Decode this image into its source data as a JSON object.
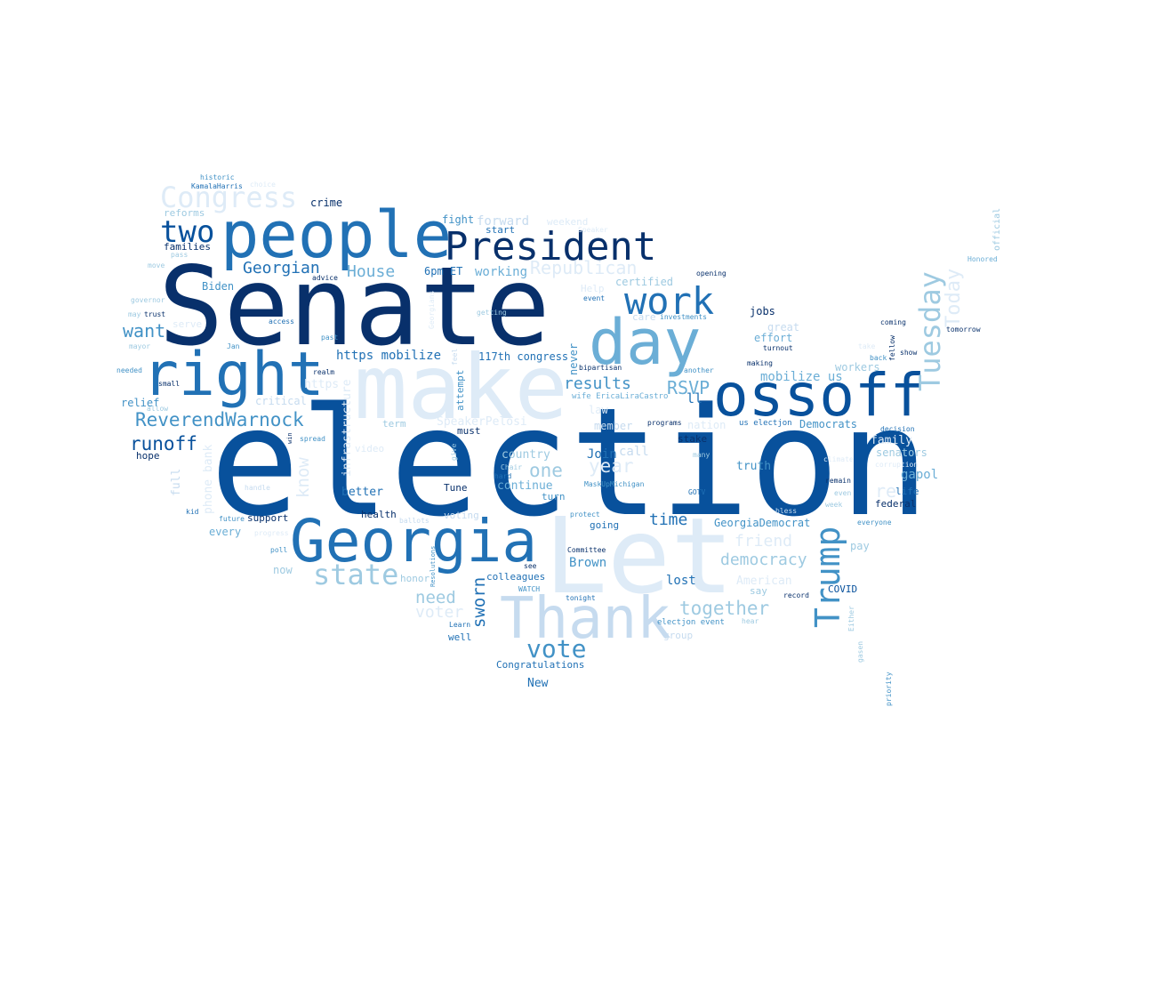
{
  "palette": [
    "#08306b",
    "#08519c",
    "#2171b5",
    "#4292c6",
    "#6baed6",
    "#9ecae1",
    "#c6dbef",
    "#deebf7"
  ],
  "words": [
    {
      "text": "election",
      "color": "#08519c"
    },
    {
      "text": "Senate",
      "color": "#08306b"
    },
    {
      "text": "make",
      "color": "#deebf7"
    },
    {
      "text": "Let",
      "color": "#deebf7"
    },
    {
      "text": "people",
      "color": "#2171b5"
    },
    {
      "text": "Georgia",
      "color": "#2171b5"
    },
    {
      "text": "ossoff",
      "color": "#08519c"
    },
    {
      "text": "right",
      "color": "#2171b5"
    },
    {
      "text": "day",
      "color": "#6baed6"
    },
    {
      "text": "Thank",
      "color": "#c6dbef"
    },
    {
      "text": "President",
      "color": "#08306b"
    },
    {
      "text": "work",
      "color": "#2171b5"
    },
    {
      "text": "Congress",
      "color": "#deebf7"
    },
    {
      "text": "two",
      "color": "#08519c"
    },
    {
      "text": "Tuesday",
      "color": "#9ecae1"
    },
    {
      "text": "Trump",
      "color": "#4292c6"
    },
    {
      "text": "vote",
      "color": "#4292c6"
    },
    {
      "text": "state",
      "color": "#9ecae1"
    },
    {
      "text": "Today",
      "color": "#deebf7"
    },
    {
      "text": "ReverendWarnock",
      "color": "#4292c6"
    },
    {
      "text": "runoff",
      "color": "#08519c"
    },
    {
      "text": "Georgian",
      "color": "#2171b5"
    },
    {
      "text": "want",
      "color": "#4292c6"
    },
    {
      "text": "House",
      "color": "#6baed6"
    },
    {
      "text": "Republican",
      "color": "#deebf7"
    },
    {
      "text": "RSVP",
      "color": "#6baed6"
    },
    {
      "text": "results",
      "color": "#4292c6"
    },
    {
      "text": "together",
      "color": "#9ecae1"
    },
    {
      "text": "one",
      "color": "#9ecae1"
    },
    {
      "text": "year",
      "color": "#deebf7"
    },
    {
      "text": "time",
      "color": "#2171b5"
    },
    {
      "text": "democracy",
      "color": "#9ecae1"
    },
    {
      "text": "need",
      "color": "#9ecae1"
    },
    {
      "text": "voter",
      "color": "#deebf7"
    },
    {
      "text": "sworn",
      "color": "#2171b5"
    },
    {
      "text": "know",
      "color": "#deebf7"
    },
    {
      "text": "friend",
      "color": "#deebf7"
    },
    {
      "text": "re",
      "color": "#deebf7"
    },
    {
      "text": "https mobilize",
      "color": "#2171b5"
    },
    {
      "text": "forward",
      "color": "#c6dbef"
    },
    {
      "text": "mobilize us",
      "color": "#6baed6"
    },
    {
      "text": "117th congress",
      "color": "#2171b5"
    },
    {
      "text": "working",
      "color": "#6baed6"
    },
    {
      "text": "certified",
      "color": "#9ecae1"
    },
    {
      "text": "ll",
      "color": "#2171b5"
    },
    {
      "text": "Join",
      "color": "#2171b5"
    },
    {
      "text": "call",
      "color": "#c6dbef"
    },
    {
      "text": "country",
      "color": "#9ecae1"
    },
    {
      "text": "continue",
      "color": "#6baed6"
    },
    {
      "text": "Brown",
      "color": "#4292c6"
    },
    {
      "text": "lost",
      "color": "#2171b5"
    },
    {
      "text": "American",
      "color": "#deebf7"
    },
    {
      "text": "GeorgiaDemocrat",
      "color": "#4292c6"
    },
    {
      "text": "truth",
      "color": "#4292c6"
    },
    {
      "text": "gapol",
      "color": "#6baed6"
    },
    {
      "text": "senators",
      "color": "#9ecae1"
    },
    {
      "text": "family",
      "color": "#deebf7"
    },
    {
      "text": "Democrats",
      "color": "#4292c6"
    },
    {
      "text": "workers",
      "color": "#9ecae1"
    },
    {
      "text": "effort",
      "color": "#6baed6"
    },
    {
      "text": "great",
      "color": "#c6dbef"
    },
    {
      "text": "jobs",
      "color": "#08306b"
    },
    {
      "text": "crime",
      "color": "#08306b"
    },
    {
      "text": "fight",
      "color": "#4292c6"
    },
    {
      "text": "start",
      "color": "#2171b5"
    },
    {
      "text": "weekend",
      "color": "#deebf7"
    },
    {
      "text": "6pm ET",
      "color": "#2171b5"
    },
    {
      "text": "Biden",
      "color": "#4292c6"
    },
    {
      "text": "families",
      "color": "#08306b"
    },
    {
      "text": "reforms",
      "color": "#9ecae1"
    },
    {
      "text": "KamalaHarris",
      "color": "#2171b5"
    },
    {
      "text": "historic",
      "color": "#4292c6"
    },
    {
      "text": "relief",
      "color": "#4292c6"
    },
    {
      "text": "hope",
      "color": "#08306b"
    },
    {
      "text": "full",
      "color": "#c6dbef"
    },
    {
      "text": "phone bank",
      "color": "#deebf7"
    },
    {
      "text": "better",
      "color": "#2171b5"
    },
    {
      "text": "health",
      "color": "#08306b"
    },
    {
      "text": "support",
      "color": "#08306b"
    },
    {
      "text": "every",
      "color": "#6baed6"
    },
    {
      "text": "now",
      "color": "#9ecae1"
    },
    {
      "text": "honor",
      "color": "#9ecae1"
    },
    {
      "text": "colleagues",
      "color": "#2171b5"
    },
    {
      "text": "well",
      "color": "#2171b5"
    },
    {
      "text": "Congratulations",
      "color": "#2171b5"
    },
    {
      "text": "New",
      "color": "#2171b5"
    },
    {
      "text": "must",
      "color": "#08306b"
    },
    {
      "text": "SpeakerPelosi",
      "color": "#deebf7"
    },
    {
      "text": "term",
      "color": "#9ecae1"
    },
    {
      "text": "critical",
      "color": "#c6dbef"
    },
    {
      "text": "infrastructure",
      "color": "#deebf7"
    },
    {
      "text": "attempt",
      "color": "#4292c6"
    },
    {
      "text": "Tune",
      "color": "#08306b"
    },
    {
      "text": "turn",
      "color": "#4292c6"
    },
    {
      "text": "voting",
      "color": "#c6dbef"
    },
    {
      "text": "going",
      "color": "#2171b5"
    },
    {
      "text": "member",
      "color": "#c6dbef"
    },
    {
      "text": "stake",
      "color": "#08306b"
    },
    {
      "text": "nation",
      "color": "#deebf7"
    },
    {
      "text": "law",
      "color": "#deebf7"
    },
    {
      "text": "federal",
      "color": "#08306b"
    },
    {
      "text": "life",
      "color": "#2171b5"
    },
    {
      "text": "pay",
      "color": "#9ecae1"
    },
    {
      "text": "COVID",
      "color": "#08519c"
    },
    {
      "text": "group",
      "color": "#c6dbef"
    },
    {
      "text": "say",
      "color": "#9ecae1"
    },
    {
      "text": "never",
      "color": "#4292c6"
    },
    {
      "text": "wife EricaLiraCastro",
      "color": "#6baed6"
    },
    {
      "text": "bipartisan",
      "color": "#08306b"
    },
    {
      "text": "electjon event",
      "color": "#4292c6"
    },
    {
      "text": "official",
      "color": "#9ecae1"
    },
    {
      "text": "Honored",
      "color": "#6baed6"
    },
    {
      "text": "opening",
      "color": "#08306b"
    },
    {
      "text": "investments",
      "color": "#4292c6"
    },
    {
      "text": "coming",
      "color": "#08306b"
    },
    {
      "text": "tomorrow",
      "color": "#08306b"
    },
    {
      "text": "fellow",
      "color": "#08306b"
    },
    {
      "text": "show",
      "color": "#08306b"
    },
    {
      "text": "back",
      "color": "#4292c6"
    },
    {
      "text": "making",
      "color": "#08306b"
    },
    {
      "text": "turnout",
      "color": "#08306b"
    },
    {
      "text": "another",
      "color": "#4292c6"
    },
    {
      "text": "decision",
      "color": "#2171b5"
    },
    {
      "text": "remain",
      "color": "#08306b"
    },
    {
      "text": "everyone",
      "color": "#4292c6"
    },
    {
      "text": "week",
      "color": "#9ecae1"
    },
    {
      "text": "even",
      "color": "#9ecae1"
    },
    {
      "text": "priority",
      "color": "#4292c6"
    },
    {
      "text": "gasen",
      "color": "#9ecae1"
    },
    {
      "text": "Either",
      "color": "#9ecae1"
    },
    {
      "text": "record",
      "color": "#08306b"
    },
    {
      "text": "hear",
      "color": "#9ecae1"
    },
    {
      "text": "bless",
      "color": "#c6dbef"
    },
    {
      "text": "GOTV",
      "color": "#2171b5"
    },
    {
      "text": "programs",
      "color": "#08306b"
    },
    {
      "text": "us electjon",
      "color": "#2171b5"
    },
    {
      "text": "MaskUpMichigan",
      "color": "#4292c6"
    },
    {
      "text": "protect",
      "color": "#4292c6"
    },
    {
      "text": "Committee",
      "color": "#08306b"
    },
    {
      "text": "see",
      "color": "#08306b"
    },
    {
      "text": "tonight",
      "color": "#2171b5"
    },
    {
      "text": "WATCH",
      "color": "#4292c6"
    },
    {
      "text": "Learn",
      "color": "#2171b5"
    },
    {
      "text": "Resolutions",
      "color": "#4292c6"
    },
    {
      "text": "Chair",
      "color": "#9ecae1"
    },
    {
      "text": "hard",
      "color": "#2171b5"
    },
    {
      "text": "many",
      "color": "#9ecae1"
    },
    {
      "text": "ballots",
      "color": "#c6dbef"
    },
    {
      "text": "future",
      "color": "#4292c6"
    },
    {
      "text": "kid",
      "color": "#2171b5"
    },
    {
      "text": "poll",
      "color": "#4292c6"
    },
    {
      "text": "handle",
      "color": "#c6dbef"
    },
    {
      "text": "video",
      "color": "#deebf7"
    },
    {
      "text": "spread",
      "color": "#4292c6"
    },
    {
      "text": "win",
      "color": "#08306b"
    },
    {
      "text": "allow",
      "color": "#9ecae1"
    },
    {
      "text": "small",
      "color": "#08306b"
    },
    {
      "text": "needed",
      "color": "#4292c6"
    },
    {
      "text": "realm",
      "color": "#08306b"
    },
    {
      "text": "past",
      "color": "#4292c6"
    },
    {
      "text": "Jan",
      "color": "#4292c6"
    },
    {
      "text": "access",
      "color": "#2171b5"
    },
    {
      "text": "advice",
      "color": "#08306b"
    },
    {
      "text": "trust",
      "color": "#08306b"
    },
    {
      "text": "may",
      "color": "#9ecae1"
    },
    {
      "text": "mayor",
      "color": "#9ecae1"
    },
    {
      "text": "governor",
      "color": "#9ecae1"
    },
    {
      "text": "move",
      "color": "#9ecae1"
    },
    {
      "text": "pass",
      "color": "#9ecae1"
    },
    {
      "text": "getting",
      "color": "#9ecae1"
    },
    {
      "text": "https",
      "color": "#deebf7"
    },
    {
      "text": "Help",
      "color": "#deebf7"
    },
    {
      "text": "care",
      "color": "#c6dbef"
    },
    {
      "text": "event",
      "color": "#2171b5"
    },
    {
      "text": "serve",
      "color": "#deebf7"
    },
    {
      "text": "Speaker",
      "color": "#deebf7"
    },
    {
      "text": "choice",
      "color": "#deebf7"
    },
    {
      "text": "corruption",
      "color": "#deebf7"
    },
    {
      "text": "climate",
      "color": "#deebf7"
    },
    {
      "text": "take",
      "color": "#deebf7"
    },
    {
      "text": "progress",
      "color": "#deebf7"
    },
    {
      "text": "feel",
      "color": "#c6dbef"
    },
    {
      "text": "give",
      "color": "#9ecae1"
    },
    {
      "text": "Georgians",
      "color": "#deebf7"
    }
  ]
}
